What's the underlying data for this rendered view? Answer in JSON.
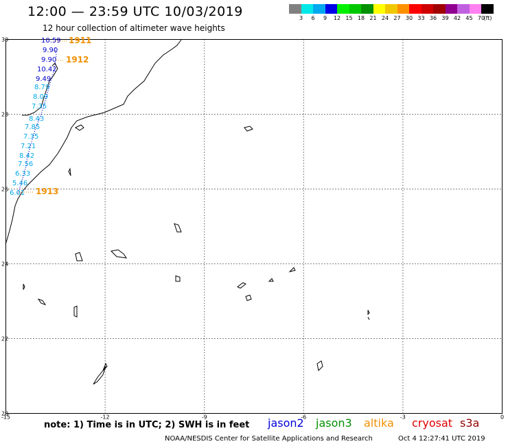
{
  "header": {
    "title": "12:00 — 23:59 UTC 10/03/2019",
    "subtitle": "12 hour collection of altimeter wave heights"
  },
  "colorbar": {
    "unit": "(ft)",
    "bins": [
      {
        "label": "3",
        "color": "#808080"
      },
      {
        "label": "6",
        "color": "#00e8e8"
      },
      {
        "label": "9",
        "color": "#00a8f0"
      },
      {
        "label": "12",
        "color": "#0000e8"
      },
      {
        "label": "15",
        "color": "#00f000"
      },
      {
        "label": "18",
        "color": "#00c800"
      },
      {
        "label": "21",
        "color": "#009000"
      },
      {
        "label": "24",
        "color": "#ffff00"
      },
      {
        "label": "27",
        "color": "#f0c800"
      },
      {
        "label": "30",
        "color": "#ff9000"
      },
      {
        "label": "33",
        "color": "#ff0000"
      },
      {
        "label": "36",
        "color": "#d00000"
      },
      {
        "label": "39",
        "color": "#a00000"
      },
      {
        "label": "42",
        "color": "#900090"
      },
      {
        "label": "45",
        "color": "#c060e0"
      },
      {
        "label": "70",
        "color": "#ff80f0"
      },
      {
        "label": "",
        "color": "#000000"
      }
    ]
  },
  "map": {
    "lat_labels": [
      "30",
      "28",
      "26",
      "24",
      "22",
      "20"
    ],
    "lon_labels": [
      "-15",
      "-12",
      "-9",
      "-6",
      "-3",
      "0"
    ],
    "pass_labels": [
      {
        "text": "1911",
        "color": "#f09000"
      },
      {
        "text": "1912",
        "color": "#f09000"
      },
      {
        "text": "1913",
        "color": "#f09000"
      }
    ],
    "observations": [
      {
        "text": "10.59",
        "color": "#0000c8"
      },
      {
        "text": "9.90",
        "color": "#0000c8"
      },
      {
        "text": "9.90",
        "color": "#0000c8"
      },
      {
        "text": "10.42",
        "color": "#0000c8"
      },
      {
        "text": "9.49",
        "color": "#0000c8"
      },
      {
        "text": "8.79",
        "color": "#00a8e8"
      },
      {
        "text": "8.09",
        "color": "#00a8e8"
      },
      {
        "text": "7.35",
        "color": "#00a8e8"
      },
      {
        "text": "8.43",
        "color": "#00a8e8"
      },
      {
        "text": "7.85",
        "color": "#00a8e8"
      },
      {
        "text": "7.35",
        "color": "#00a8e8"
      },
      {
        "text": "7.21",
        "color": "#00a8e8"
      },
      {
        "text": "8.42",
        "color": "#00a8e8"
      },
      {
        "text": "7.56",
        "color": "#00a8e8"
      },
      {
        "text": "6.33",
        "color": "#00a8e8"
      },
      {
        "text": "5.46",
        "color": "#00a8e8"
      },
      {
        "text": "6.01",
        "color": "#00a8e8"
      }
    ]
  },
  "footer": {
    "note": "note: 1) Time is in UTC; 2) SWH is in feet",
    "satellites": [
      {
        "name": "jason2",
        "color": "#0000d8"
      },
      {
        "name": "jason3",
        "color": "#009000"
      },
      {
        "name": "altika",
        "color": "#f09000"
      },
      {
        "name": "cryosat",
        "color": "#e00000"
      },
      {
        "name": "s3a",
        "color": "#900000"
      }
    ],
    "credit": "NOAA/NESDIS Center for Satellite Applications and Research",
    "timestamp": "Oct  4 12:27:41 UTC 2019"
  }
}
